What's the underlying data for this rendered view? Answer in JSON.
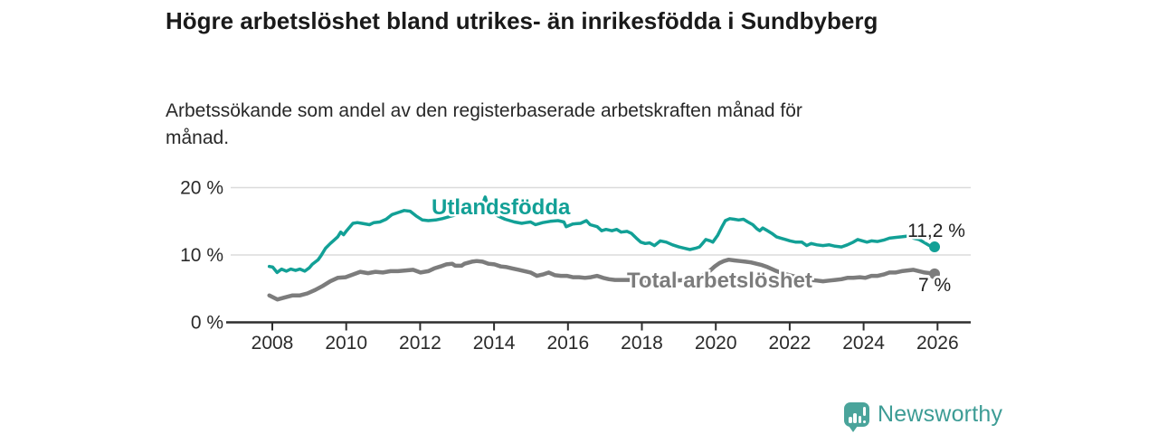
{
  "chart_data": {
    "type": "line",
    "title": "Högre arbetslöshet bland utrikes- än inrikesfödda i Sundbyberg",
    "subtitle": "Arbetssökande som andel av den registerbaserade arbetskraften månad för månad.",
    "xlabel": "",
    "ylabel": "",
    "unit": "%",
    "grid": "horizontal",
    "legend_position": "inline-labels",
    "xlim": [
      2007.0,
      2026.9
    ],
    "ylim": [
      0,
      21
    ],
    "x_ticks": [
      {
        "value": 2008,
        "label": "2008"
      },
      {
        "value": 2010,
        "label": "2010"
      },
      {
        "value": 2012,
        "label": "2012"
      },
      {
        "value": 2014,
        "label": "2014"
      },
      {
        "value": 2016,
        "label": "2016"
      },
      {
        "value": 2018,
        "label": "2018"
      },
      {
        "value": 2020,
        "label": "2020"
      },
      {
        "value": 2022,
        "label": "2022"
      },
      {
        "value": 2024,
        "label": "2024"
      },
      {
        "value": 2026,
        "label": "2026"
      }
    ],
    "y_ticks": [
      {
        "value": 0,
        "label": "0 %"
      },
      {
        "value": 10,
        "label": "10 %"
      },
      {
        "value": 20,
        "label": "20 %"
      }
    ],
    "series": [
      {
        "name": "Utlandsfödda",
        "color": "#12A096",
        "end_label": "11,2 %",
        "last_value": 11.2,
        "points": [
          [
            2007.92,
            8.3
          ],
          [
            2008.01,
            8.2
          ],
          [
            2008.13,
            7.4
          ],
          [
            2008.25,
            7.9
          ],
          [
            2008.38,
            7.6
          ],
          [
            2008.5,
            7.9
          ],
          [
            2008.63,
            7.7
          ],
          [
            2008.75,
            7.9
          ],
          [
            2008.88,
            7.6
          ],
          [
            2009.0,
            8.1
          ],
          [
            2009.08,
            8.6
          ],
          [
            2009.24,
            9.3
          ],
          [
            2009.32,
            9.9
          ],
          [
            2009.44,
            11.0
          ],
          [
            2009.57,
            11.7
          ],
          [
            2009.69,
            12.3
          ],
          [
            2009.77,
            12.7
          ],
          [
            2009.85,
            13.4
          ],
          [
            2009.93,
            13.0
          ],
          [
            2010.01,
            13.6
          ],
          [
            2010.18,
            14.7
          ],
          [
            2010.3,
            14.8
          ],
          [
            2010.42,
            14.7
          ],
          [
            2010.63,
            14.5
          ],
          [
            2010.75,
            14.8
          ],
          [
            2010.91,
            14.9
          ],
          [
            2011.08,
            15.3
          ],
          [
            2011.24,
            16.0
          ],
          [
            2011.4,
            16.3
          ],
          [
            2011.57,
            16.6
          ],
          [
            2011.73,
            16.5
          ],
          [
            2011.89,
            15.8
          ],
          [
            2012.06,
            15.2
          ],
          [
            2012.22,
            15.1
          ],
          [
            2012.42,
            15.2
          ],
          [
            2012.6,
            15.4
          ],
          [
            2012.8,
            15.7
          ],
          [
            2013.0,
            16.0
          ],
          [
            2013.2,
            16.2
          ],
          [
            2013.4,
            16.4
          ],
          [
            2013.6,
            16.7
          ],
          [
            2013.7,
            17.7
          ],
          [
            2013.76,
            18.6
          ],
          [
            2013.82,
            17.5
          ],
          [
            2013.92,
            16.4
          ],
          [
            2014.1,
            15.8
          ],
          [
            2014.3,
            15.3
          ],
          [
            2014.55,
            14.9
          ],
          [
            2014.75,
            14.7
          ],
          [
            2014.87,
            14.8
          ],
          [
            2014.99,
            14.9
          ],
          [
            2015.12,
            14.5
          ],
          [
            2015.32,
            14.8
          ],
          [
            2015.52,
            15.0
          ],
          [
            2015.73,
            15.1
          ],
          [
            2015.89,
            14.9
          ],
          [
            2015.95,
            14.2
          ],
          [
            2016.13,
            14.6
          ],
          [
            2016.34,
            14.7
          ],
          [
            2016.5,
            15.1
          ],
          [
            2016.6,
            14.5
          ],
          [
            2016.79,
            14.2
          ],
          [
            2016.91,
            13.6
          ],
          [
            2017.03,
            13.8
          ],
          [
            2017.19,
            13.6
          ],
          [
            2017.32,
            13.8
          ],
          [
            2017.44,
            13.4
          ],
          [
            2017.6,
            13.5
          ],
          [
            2017.72,
            13.2
          ],
          [
            2017.85,
            12.5
          ],
          [
            2017.97,
            11.9
          ],
          [
            2018.09,
            11.7
          ],
          [
            2018.21,
            11.8
          ],
          [
            2018.34,
            11.4
          ],
          [
            2018.5,
            12.1
          ],
          [
            2018.66,
            11.9
          ],
          [
            2018.83,
            11.5
          ],
          [
            2019.0,
            11.2
          ],
          [
            2019.15,
            11.0
          ],
          [
            2019.3,
            10.8
          ],
          [
            2019.45,
            11.0
          ],
          [
            2019.56,
            11.2
          ],
          [
            2019.64,
            11.7
          ],
          [
            2019.73,
            12.3
          ],
          [
            2019.85,
            12.1
          ],
          [
            2019.92,
            11.9
          ],
          [
            2020.05,
            12.9
          ],
          [
            2020.17,
            14.2
          ],
          [
            2020.26,
            15.1
          ],
          [
            2020.38,
            15.4
          ],
          [
            2020.5,
            15.3
          ],
          [
            2020.62,
            15.2
          ],
          [
            2020.75,
            15.3
          ],
          [
            2020.87,
            14.9
          ],
          [
            2021.0,
            14.5
          ],
          [
            2021.11,
            13.9
          ],
          [
            2021.19,
            13.6
          ],
          [
            2021.27,
            14.0
          ],
          [
            2021.4,
            13.6
          ],
          [
            2021.52,
            13.2
          ],
          [
            2021.64,
            12.7
          ],
          [
            2021.76,
            12.5
          ],
          [
            2021.89,
            12.3
          ],
          [
            2022.01,
            12.1
          ],
          [
            2022.17,
            11.9
          ],
          [
            2022.33,
            11.9
          ],
          [
            2022.46,
            11.4
          ],
          [
            2022.58,
            11.7
          ],
          [
            2022.74,
            11.5
          ],
          [
            2022.9,
            11.4
          ],
          [
            2023.07,
            11.5
          ],
          [
            2023.23,
            11.3
          ],
          [
            2023.4,
            11.2
          ],
          [
            2023.56,
            11.5
          ],
          [
            2023.72,
            11.9
          ],
          [
            2023.84,
            12.3
          ],
          [
            2023.97,
            12.1
          ],
          [
            2024.09,
            11.9
          ],
          [
            2024.21,
            12.1
          ],
          [
            2024.38,
            12.0
          ],
          [
            2024.54,
            12.2
          ],
          [
            2024.7,
            12.5
          ],
          [
            2024.86,
            12.6
          ],
          [
            2025.03,
            12.7
          ],
          [
            2025.19,
            12.8
          ],
          [
            2025.35,
            12.5
          ],
          [
            2025.5,
            12.3
          ],
          [
            2025.62,
            11.9
          ],
          [
            2025.78,
            11.4
          ],
          [
            2025.92,
            11.2
          ]
        ]
      },
      {
        "name": "Total arbetslöshet",
        "color": "#7C7C7C",
        "end_label": "7 %",
        "last_value": 7,
        "points": [
          [
            2007.92,
            4.0
          ],
          [
            2008.14,
            3.4
          ],
          [
            2008.34,
            3.7
          ],
          [
            2008.55,
            4.0
          ],
          [
            2008.75,
            4.0
          ],
          [
            2008.95,
            4.3
          ],
          [
            2009.16,
            4.8
          ],
          [
            2009.36,
            5.4
          ],
          [
            2009.57,
            6.1
          ],
          [
            2009.77,
            6.6
          ],
          [
            2009.98,
            6.7
          ],
          [
            2010.18,
            7.1
          ],
          [
            2010.38,
            7.5
          ],
          [
            2010.59,
            7.3
          ],
          [
            2010.79,
            7.5
          ],
          [
            2010.99,
            7.4
          ],
          [
            2011.2,
            7.6
          ],
          [
            2011.4,
            7.6
          ],
          [
            2011.61,
            7.7
          ],
          [
            2011.81,
            7.8
          ],
          [
            2012.01,
            7.4
          ],
          [
            2012.22,
            7.6
          ],
          [
            2012.38,
            8.0
          ],
          [
            2012.55,
            8.3
          ],
          [
            2012.71,
            8.6
          ],
          [
            2012.87,
            8.7
          ],
          [
            2012.95,
            8.4
          ],
          [
            2013.12,
            8.4
          ],
          [
            2013.2,
            8.7
          ],
          [
            2013.4,
            9.0
          ],
          [
            2013.53,
            9.1
          ],
          [
            2013.69,
            9.0
          ],
          [
            2013.85,
            8.7
          ],
          [
            2014.01,
            8.6
          ],
          [
            2014.18,
            8.3
          ],
          [
            2014.34,
            8.2
          ],
          [
            2014.5,
            8.0
          ],
          [
            2014.67,
            7.8
          ],
          [
            2014.83,
            7.6
          ],
          [
            2014.99,
            7.4
          ],
          [
            2015.16,
            6.9
          ],
          [
            2015.32,
            7.1
          ],
          [
            2015.48,
            7.4
          ],
          [
            2015.65,
            7.0
          ],
          [
            2015.81,
            6.9
          ],
          [
            2015.97,
            6.9
          ],
          [
            2016.13,
            6.7
          ],
          [
            2016.3,
            6.7
          ],
          [
            2016.46,
            6.6
          ],
          [
            2016.62,
            6.7
          ],
          [
            2016.79,
            6.9
          ],
          [
            2016.95,
            6.6
          ],
          [
            2017.11,
            6.4
          ],
          [
            2017.27,
            6.3
          ],
          [
            2017.44,
            6.3
          ],
          [
            2017.7,
            6.3
          ],
          [
            2018.0,
            6.2
          ],
          [
            2018.3,
            6.1
          ],
          [
            2018.6,
            6.1
          ],
          [
            2018.9,
            6.2
          ],
          [
            2019.2,
            6.3
          ],
          [
            2019.5,
            6.6
          ],
          [
            2019.7,
            7.1
          ],
          [
            2019.85,
            7.7
          ],
          [
            2019.97,
            8.3
          ],
          [
            2020.1,
            8.8
          ],
          [
            2020.22,
            9.1
          ],
          [
            2020.35,
            9.3
          ],
          [
            2020.5,
            9.2
          ],
          [
            2020.65,
            9.1
          ],
          [
            2020.8,
            9.0
          ],
          [
            2020.95,
            8.9
          ],
          [
            2021.1,
            8.7
          ],
          [
            2021.25,
            8.5
          ],
          [
            2021.4,
            8.2
          ],
          [
            2021.6,
            7.7
          ],
          [
            2021.8,
            7.3
          ],
          [
            2022.0,
            7.0
          ],
          [
            2022.2,
            6.7
          ],
          [
            2022.42,
            6.4
          ],
          [
            2022.58,
            6.3
          ],
          [
            2022.74,
            6.2
          ],
          [
            2022.9,
            6.1
          ],
          [
            2023.07,
            6.2
          ],
          [
            2023.23,
            6.3
          ],
          [
            2023.4,
            6.4
          ],
          [
            2023.56,
            6.6
          ],
          [
            2023.72,
            6.6
          ],
          [
            2023.9,
            6.7
          ],
          [
            2024.05,
            6.6
          ],
          [
            2024.21,
            6.9
          ],
          [
            2024.38,
            6.9
          ],
          [
            2024.54,
            7.1
          ],
          [
            2024.7,
            7.4
          ],
          [
            2024.86,
            7.4
          ],
          [
            2025.03,
            7.6
          ],
          [
            2025.19,
            7.7
          ],
          [
            2025.35,
            7.8
          ],
          [
            2025.5,
            7.6
          ],
          [
            2025.65,
            7.4
          ],
          [
            2025.8,
            7.3
          ],
          [
            2025.92,
            7.2
          ]
        ]
      }
    ]
  },
  "footer": {
    "brand": "Newsworthy",
    "brand_color": "#3D9C95",
    "logo_color": "#4AA49B"
  },
  "colors": {
    "axis": "#2E2E2E",
    "gridline": "#DBDBDB",
    "tick_text": "#2A2A2A",
    "value_label_text": "#1F1F1F",
    "title_text": "#1A1A1A"
  }
}
